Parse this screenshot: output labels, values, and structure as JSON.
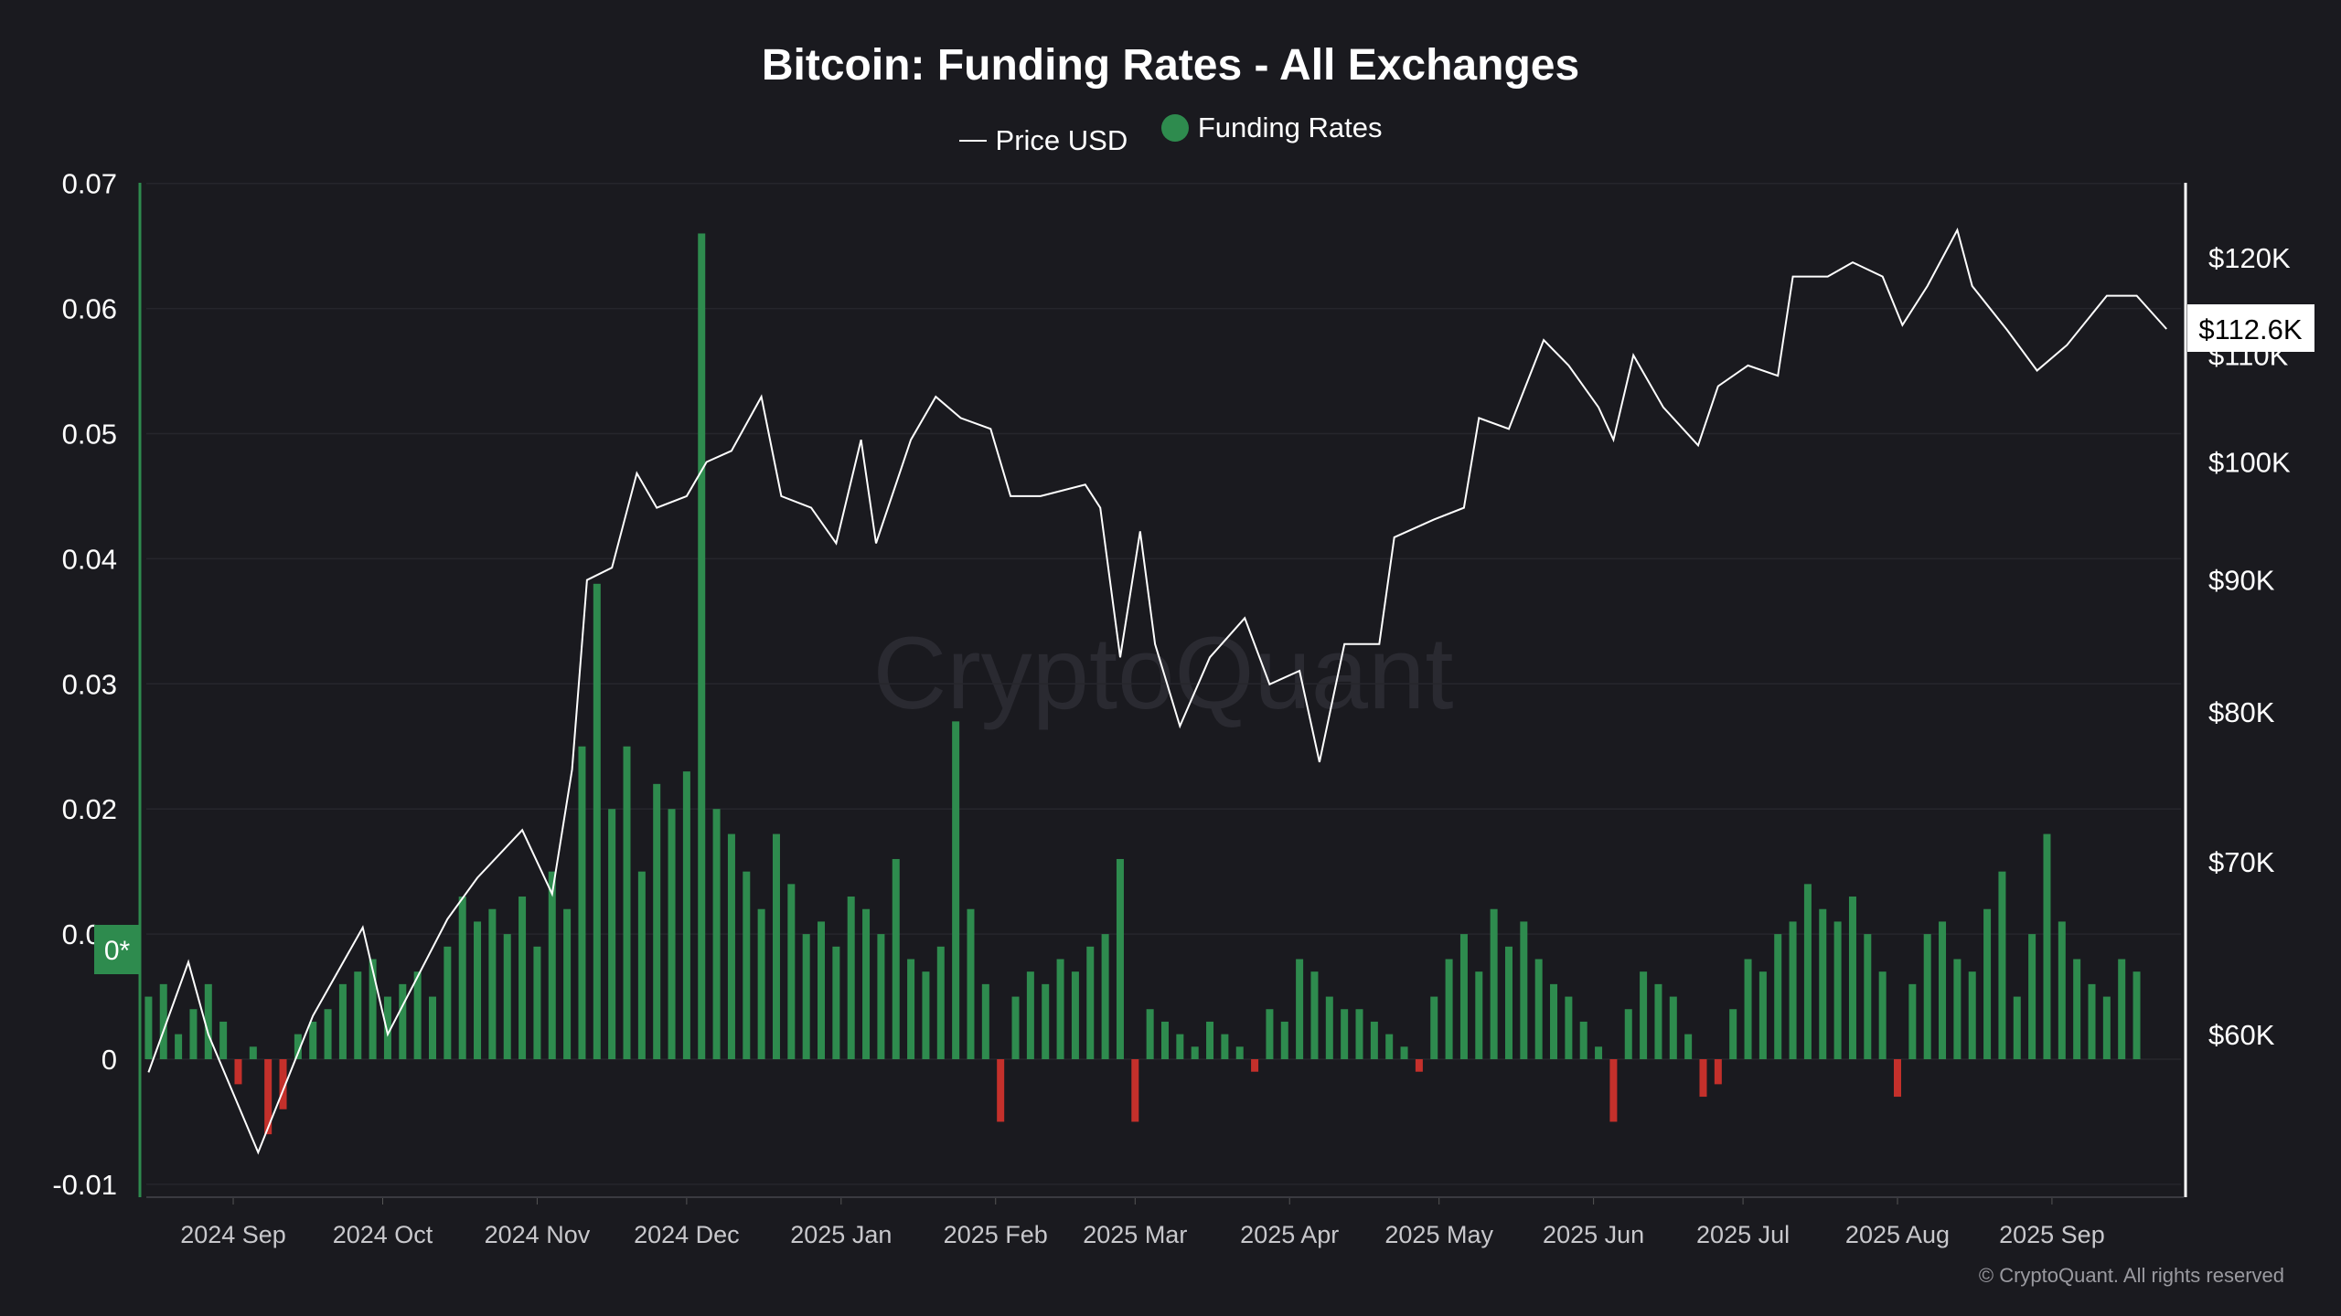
{
  "chart_data": {
    "type": "bar+line",
    "title": "Bitcoin: Funding Rates - All Exchanges",
    "legend": [
      {
        "label": "Price USD",
        "color": "#ffffff"
      },
      {
        "label": "Funding Rates",
        "color": "#2e8b4e"
      }
    ],
    "legend_position": "top-center",
    "left_axis": {
      "ticks": [
        "0.07",
        "0.06",
        "0.05",
        "0.04",
        "0.03",
        "0.02",
        "0.01",
        "0",
        "-0.01"
      ],
      "range": [
        -0.01,
        0.07
      ]
    },
    "right_axis": {
      "ticks": [
        "$120K",
        "$110K",
        "$100K",
        "$90K",
        "$80K",
        "$70K",
        "$60K"
      ],
      "tick_values": [
        120000,
        110000,
        100000,
        90000,
        80000,
        70000,
        60000
      ],
      "scale": "log"
    },
    "x_ticks": [
      "2024 Sep",
      "2024 Oct",
      "2024 Nov",
      "2024 Dec",
      "2025 Jan",
      "2025 Feb",
      "2025 Mar",
      "2025 Apr",
      "2025 May",
      "2025 Jun",
      "2025 Jul",
      "2025 Aug",
      "2025 Sep"
    ],
    "x_tick_dates": [
      "2024-09-01",
      "2024-10-01",
      "2024-11-01",
      "2024-12-01",
      "2025-01-01",
      "2025-02-01",
      "2025-03-01",
      "2025-04-01",
      "2025-05-01",
      "2025-06-01",
      "2025-07-01",
      "2025-08-01",
      "2025-09-01"
    ],
    "x_range": [
      "2024-08-15",
      "2025-09-25"
    ],
    "current_price_label": "$112.6K",
    "zero_marker_label": "0*",
    "watermark": "CryptoQuant",
    "copyright": "© CryptoQuant. All rights reserved",
    "colors": {
      "positive": "#2e8b4e",
      "negative": "#c4302b",
      "price": "#ffffff"
    },
    "price_series": {
      "name": "Price USD",
      "points": [
        [
          "2024-08-15",
          58000
        ],
        [
          "2024-08-23",
          64000
        ],
        [
          "2024-08-27",
          60000
        ],
        [
          "2024-09-06",
          54000
        ],
        [
          "2024-09-17",
          61000
        ],
        [
          "2024-09-27",
          66000
        ],
        [
          "2024-10-02",
          60000
        ],
        [
          "2024-10-14",
          66500
        ],
        [
          "2024-10-20",
          69000
        ],
        [
          "2024-10-29",
          72000
        ],
        [
          "2024-11-04",
          68000
        ],
        [
          "2024-11-08",
          76000
        ],
        [
          "2024-11-11",
          90000
        ],
        [
          "2024-11-16",
          91000
        ],
        [
          "2024-11-21",
          99000
        ],
        [
          "2024-11-25",
          96000
        ],
        [
          "2024-12-01",
          97000
        ],
        [
          "2024-12-05",
          100000
        ],
        [
          "2024-12-10",
          101000
        ],
        [
          "2024-12-16",
          106000
        ],
        [
          "2024-12-20",
          97000
        ],
        [
          "2024-12-26",
          96000
        ],
        [
          "2024-12-31",
          93000
        ],
        [
          "2025-01-05",
          102000
        ],
        [
          "2025-01-08",
          93000
        ],
        [
          "2025-01-15",
          102000
        ],
        [
          "2025-01-20",
          106000
        ],
        [
          "2025-01-25",
          104000
        ],
        [
          "2025-01-31",
          103000
        ],
        [
          "2025-02-04",
          97000
        ],
        [
          "2025-02-10",
          97000
        ],
        [
          "2025-02-19",
          98000
        ],
        [
          "2025-02-22",
          96000
        ],
        [
          "2025-02-26",
          84000
        ],
        [
          "2025-03-02",
          94000
        ],
        [
          "2025-03-05",
          85000
        ],
        [
          "2025-03-10",
          79000
        ],
        [
          "2025-03-16",
          84000
        ],
        [
          "2025-03-23",
          87000
        ],
        [
          "2025-03-28",
          82000
        ],
        [
          "2025-04-03",
          83000
        ],
        [
          "2025-04-07",
          76500
        ],
        [
          "2025-04-12",
          85000
        ],
        [
          "2025-04-19",
          85000
        ],
        [
          "2025-04-22",
          93500
        ],
        [
          "2025-04-30",
          95000
        ],
        [
          "2025-05-06",
          96000
        ],
        [
          "2025-05-09",
          104000
        ],
        [
          "2025-05-15",
          103000
        ],
        [
          "2025-05-22",
          111500
        ],
        [
          "2025-05-27",
          109000
        ],
        [
          "2025-06-02",
          105000
        ],
        [
          "2025-06-05",
          102000
        ],
        [
          "2025-06-09",
          110000
        ],
        [
          "2025-06-15",
          105000
        ],
        [
          "2025-06-22",
          101500
        ],
        [
          "2025-06-26",
          107000
        ],
        [
          "2025-07-02",
          109000
        ],
        [
          "2025-07-08",
          108000
        ],
        [
          "2025-07-11",
          118000
        ],
        [
          "2025-07-18",
          118000
        ],
        [
          "2025-07-23",
          119500
        ],
        [
          "2025-07-29",
          118000
        ],
        [
          "2025-08-02",
          113000
        ],
        [
          "2025-08-07",
          117000
        ],
        [
          "2025-08-13",
          123000
        ],
        [
          "2025-08-16",
          117000
        ],
        [
          "2025-08-23",
          112500
        ],
        [
          "2025-08-29",
          108500
        ],
        [
          "2025-09-04",
          111000
        ],
        [
          "2025-09-12",
          116000
        ],
        [
          "2025-09-18",
          116000
        ],
        [
          "2025-09-24",
          112600
        ]
      ]
    },
    "funding_series": {
      "name": "Funding Rates",
      "start_date": "2024-08-15",
      "interval_days": 3,
      "values": [
        0.005,
        0.006,
        0.002,
        0.004,
        0.006,
        0.003,
        -0.002,
        0.001,
        -0.006,
        -0.004,
        0.002,
        0.003,
        0.004,
        0.006,
        0.007,
        0.008,
        0.005,
        0.006,
        0.007,
        0.005,
        0.009,
        0.013,
        0.011,
        0.012,
        0.01,
        0.013,
        0.009,
        0.015,
        0.012,
        0.025,
        0.038,
        0.02,
        0.025,
        0.015,
        0.022,
        0.02,
        0.023,
        0.066,
        0.02,
        0.018,
        0.015,
        0.012,
        0.018,
        0.014,
        0.01,
        0.011,
        0.009,
        0.013,
        0.012,
        0.01,
        0.016,
        0.008,
        0.007,
        0.009,
        0.027,
        0.012,
        0.006,
        -0.005,
        0.005,
        0.007,
        0.006,
        0.008,
        0.007,
        0.009,
        0.01,
        0.016,
        -0.005,
        0.004,
        0.003,
        0.002,
        0.001,
        0.003,
        0.002,
        0.001,
        -0.001,
        0.004,
        0.003,
        0.008,
        0.007,
        0.005,
        0.004,
        0.004,
        0.003,
        0.002,
        0.001,
        -0.001,
        0.005,
        0.008,
        0.01,
        0.007,
        0.012,
        0.009,
        0.011,
        0.008,
        0.006,
        0.005,
        0.003,
        0.001,
        -0.005,
        0.004,
        0.007,
        0.006,
        0.005,
        0.002,
        -0.003,
        -0.002,
        0.004,
        0.008,
        0.007,
        0.01,
        0.011,
        0.014,
        0.012,
        0.011,
        0.013,
        0.01,
        0.007,
        -0.003,
        0.006,
        0.01,
        0.011,
        0.008,
        0.007,
        0.012,
        0.015,
        0.005,
        0.01,
        0.018,
        0.011,
        0.008,
        0.006,
        0.005,
        0.008,
        0.007
      ]
    }
  }
}
